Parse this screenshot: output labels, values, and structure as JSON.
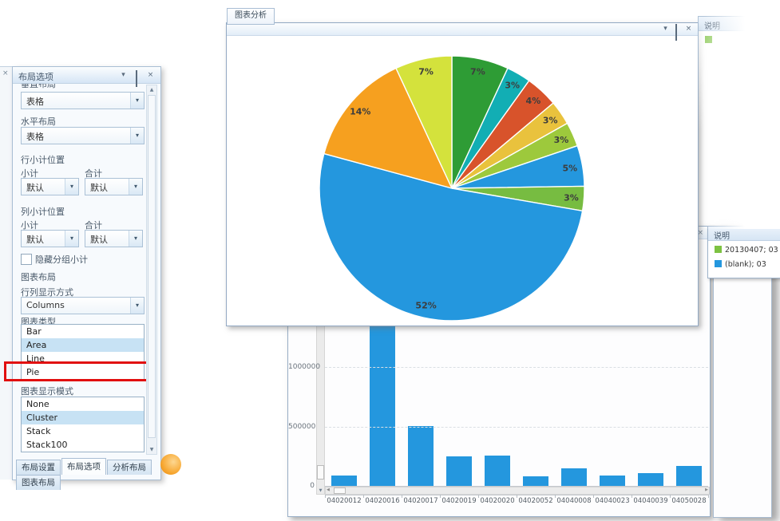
{
  "icons": {
    "collapse": "▾",
    "close": "×",
    "dropdown_arrow": "▾",
    "scroll_up": "▲",
    "scroll_down": "▼",
    "scroll_left": "◀",
    "scroll_right": "▶"
  },
  "layout_panel": {
    "title": "布局选项",
    "vertical_layout": {
      "label": "垂直布局",
      "value": "表格"
    },
    "horizontal_layout": {
      "label": "水平布局",
      "value": "表格"
    },
    "row_subtotal": {
      "label": "行小计位置",
      "subtotal_label": "小计",
      "total_label": "合计",
      "subtotal_value": "默认",
      "total_value": "默认"
    },
    "col_subtotal": {
      "label": "列小计位置",
      "subtotal_label": "小计",
      "total_label": "合计",
      "subtotal_value": "默认",
      "total_value": "默认"
    },
    "hide_group_subtotal": {
      "label": "隐藏分组小计",
      "checked": false
    },
    "chart_layout_section_label": "图表布局",
    "rowcol_display": {
      "label": "行列显示方式",
      "value": "Columns"
    },
    "chart_type": {
      "label": "图表类型",
      "options": [
        "Bar",
        "Area",
        "Line",
        "Pie"
      ],
      "selected": "Area",
      "highlighted_by_red_box": "Pie"
    },
    "chart_mode": {
      "label": "图表显示模式",
      "options": [
        "None",
        "Cluster",
        "Stack",
        "Stack100"
      ],
      "selected": "Cluster"
    },
    "tabs": [
      {
        "label": "布局设置",
        "active": false
      },
      {
        "label": "布局选项",
        "active": true
      },
      {
        "label": "分析布局",
        "active": false
      },
      {
        "label": "图表布局",
        "active": false
      }
    ]
  },
  "pie_window": {
    "tab": "图表分析"
  },
  "pie_legend": {
    "title": "说明",
    "swatch_color": "#7DC242"
  },
  "bar_legend": {
    "title": "说明",
    "items": [
      {
        "label": "20130407; 03",
        "color": "#7DC242"
      },
      {
        "label": "(blank); 03",
        "color": "#2497DE"
      }
    ]
  },
  "chart_data": [
    {
      "type": "pie",
      "slices": [
        {
          "label": "7%",
          "value": 7,
          "color": "#2E9C35"
        },
        {
          "label": "3%",
          "value": 3,
          "color": "#12AEB4"
        },
        {
          "label": "4%",
          "value": 4,
          "color": "#D8532B"
        },
        {
          "label": "3%",
          "value": 3,
          "color": "#E9C23D"
        },
        {
          "label": "3%",
          "value": 3,
          "color": "#9DC93C"
        },
        {
          "label": "5%",
          "value": 5,
          "color": "#2497DE"
        },
        {
          "label": "3%",
          "value": 3,
          "color": "#77BC41"
        },
        {
          "label": "52%",
          "value": 52,
          "color": "#2497DE"
        },
        {
          "label": "14%",
          "value": 14,
          "color": "#F6A01F"
        },
        {
          "label": "7%",
          "value": 7,
          "color": "#D4E23C"
        }
      ],
      "start_angle_deg": 0,
      "direction": "clockwise",
      "label_color": "#3D3D3D"
    },
    {
      "type": "bar",
      "categories": [
        "04020012",
        "04020016",
        "04020017",
        "04020019",
        "04020020",
        "04020052",
        "04040008",
        "04040023",
        "04040039",
        "04050028"
      ],
      "values": [
        90000,
        1390000,
        500000,
        250000,
        255000,
        80000,
        150000,
        90000,
        105000,
        165000
      ],
      "bar_color": "#2497DE",
      "y_ticks": [
        0,
        500000,
        1000000
      ],
      "ylim": [
        0,
        1420000
      ],
      "grid": "dashed-horizontal"
    }
  ]
}
